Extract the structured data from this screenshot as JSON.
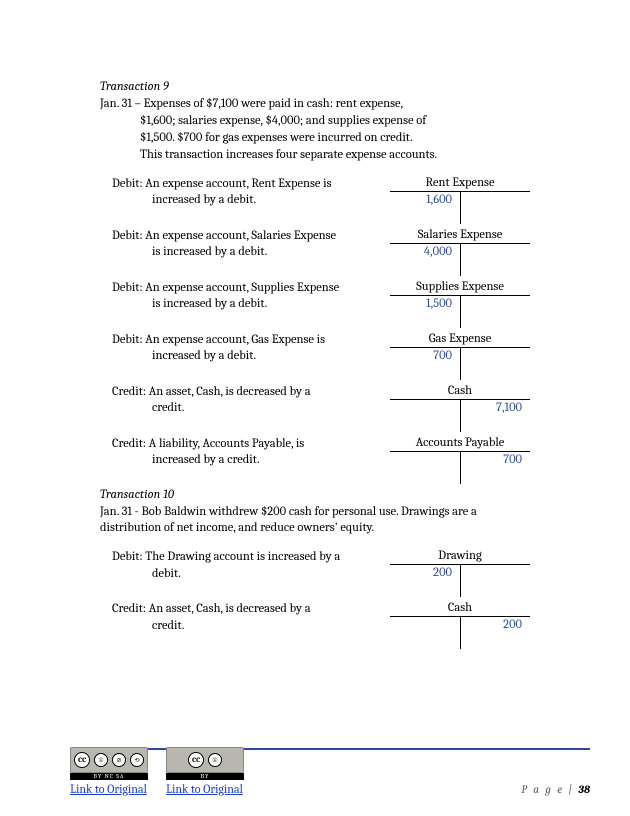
{
  "t9": {
    "title": "Transaction 9",
    "desc_line1": "Jan. 31 – Expenses of $7,100 were paid in cash: rent expense,",
    "desc_line2": "$1,600; salaries expense, $4,000; and supplies expense of",
    "desc_line3": "$1,500. $700 for gas expenses were incurred on credit.",
    "desc_line4": "This transaction increases four separate expense accounts.",
    "entries": [
      {
        "label": "Debit:",
        "text": "An expense account, Rent Expense is",
        "text2": "increased by a debit.",
        "account": "Rent Expense",
        "debit": "1,600",
        "credit": ""
      },
      {
        "label": "Debit:",
        "text": "An expense account, Salaries Expense",
        "text2": "is increased by a debit.",
        "account": "Salaries Expense",
        "debit": "4,000",
        "credit": ""
      },
      {
        "label": "Debit:",
        "text": "An expense account, Supplies Expense",
        "text2": "is increased by a debit.",
        "account": "Supplies Expense",
        "debit": "1,500",
        "credit": ""
      },
      {
        "label": "Debit:",
        "text": "An expense account, Gas Expense is",
        "text2": "increased by a debit.",
        "account": "Gas Expense",
        "debit": "700",
        "credit": ""
      },
      {
        "label": "Credit:",
        "text": "An asset, Cash, is decreased by a",
        "text2": "credit.",
        "account": "Cash",
        "debit": "",
        "credit": "7,100"
      },
      {
        "label": "Credit:",
        "text": "A liability, Accounts Payable, is",
        "text2": "increased by a credit.",
        "account": "Accounts Payable",
        "debit": "",
        "credit": "700"
      }
    ]
  },
  "t10": {
    "title": "Transaction 10",
    "desc": "Jan. 31 - Bob Baldwin withdrew $200 cash for personal use. Drawings are a distribution of net income, and reduce owners' equity.",
    "entries": [
      {
        "label": "Debit:",
        "text": "The Drawing account is increased by a",
        "text2": "debit.",
        "account": "Drawing",
        "debit": "200",
        "credit": ""
      },
      {
        "label": "Credit:",
        "text": "An asset, Cash, is decreased by a",
        "text2": "credit.",
        "account": "Cash",
        "debit": "",
        "credit": "200"
      }
    ]
  },
  "footer": {
    "link_text": "Link to Original",
    "page_label": "P a g e |",
    "page_num": "38"
  },
  "colors": {
    "value_color": "#2e4a9e",
    "line_color": "#2e4a9e"
  }
}
